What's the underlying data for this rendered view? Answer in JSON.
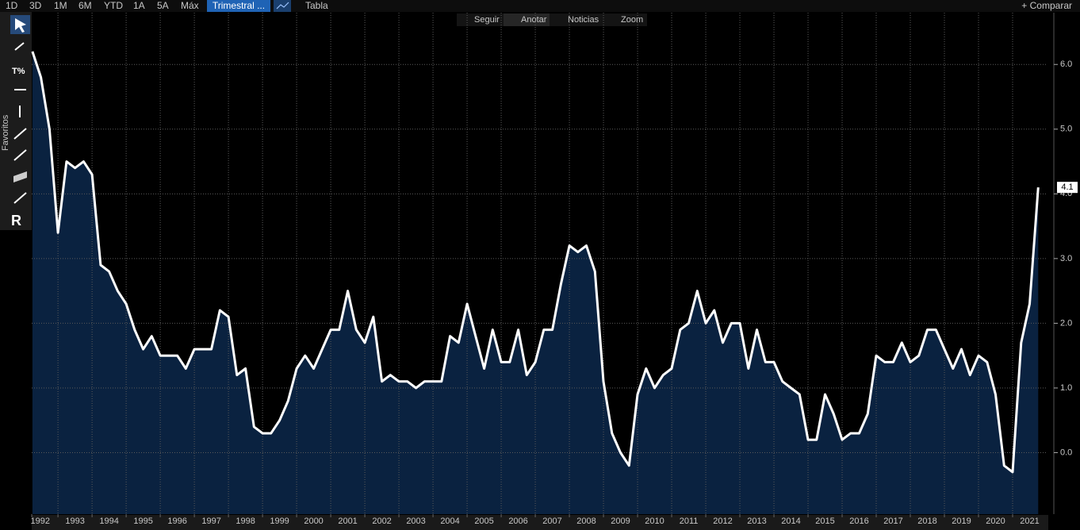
{
  "toolbar": {
    "periods": [
      "1D",
      "3D",
      "1M",
      "6M",
      "YTD",
      "1A",
      "5A",
      "Máx"
    ],
    "frequency": "Trimestral ...",
    "table": "Tabla",
    "compare": "+ Comparar"
  },
  "chart_tools": [
    "Seguir",
    "Anotar",
    "Noticias",
    "Zoom"
  ],
  "side_panel": "Favoritos",
  "chart_data": {
    "type": "area",
    "x": [
      1992.25,
      1992.5,
      1992.75,
      1993,
      1993.25,
      1993.5,
      1993.75,
      1994,
      1994.25,
      1994.5,
      1994.75,
      1995,
      1995.25,
      1995.5,
      1995.75,
      1996,
      1996.25,
      1996.5,
      1996.75,
      1997,
      1997.25,
      1997.5,
      1997.75,
      1998,
      1998.25,
      1998.5,
      1998.75,
      1999,
      1999.25,
      1999.5,
      1999.75,
      2000,
      2000.25,
      2000.5,
      2000.75,
      2001,
      2001.25,
      2001.5,
      2001.75,
      2002,
      2002.25,
      2002.5,
      2002.75,
      2003,
      2003.25,
      2003.5,
      2003.75,
      2004,
      2004.25,
      2004.5,
      2004.75,
      2005,
      2005.25,
      2005.5,
      2005.75,
      2006,
      2006.25,
      2006.5,
      2006.75,
      2007,
      2007.25,
      2007.5,
      2007.75,
      2008,
      2008.25,
      2008.5,
      2008.75,
      2009,
      2009.25,
      2009.5,
      2009.75,
      2010,
      2010.25,
      2010.5,
      2010.75,
      2011,
      2011.25,
      2011.5,
      2011.75,
      2012,
      2012.25,
      2012.5,
      2012.75,
      2013,
      2013.25,
      2013.5,
      2013.75,
      2014,
      2014.25,
      2014.5,
      2014.75,
      2015,
      2015.25,
      2015.5,
      2015.75,
      2016,
      2016.25,
      2016.5,
      2016.75,
      2017,
      2017.25,
      2017.5,
      2017.75,
      2018,
      2018.25,
      2018.5,
      2018.75,
      2019,
      2019.25,
      2019.5,
      2019.75,
      2020,
      2020.25,
      2020.5,
      2020.75,
      2021,
      2021.25,
      2021.5,
      2021.75
    ],
    "series": [
      {
        "color": "#ffffff",
        "fill": "#0a2240",
        "values": [
          6.2,
          5.8,
          5.0,
          3.4,
          4.5,
          4.4,
          4.5,
          4.3,
          2.9,
          2.8,
          2.5,
          2.3,
          1.9,
          1.6,
          1.8,
          1.5,
          1.5,
          1.5,
          1.3,
          1.6,
          1.6,
          1.6,
          2.2,
          2.1,
          1.2,
          1.3,
          0.4,
          0.3,
          0.3,
          0.5,
          0.8,
          1.3,
          1.5,
          1.3,
          1.6,
          1.9,
          1.9,
          2.5,
          1.9,
          1.7,
          2.1,
          1.1,
          1.2,
          1.1,
          1.1,
          1.0,
          1.1,
          1.1,
          1.1,
          1.8,
          1.7,
          2.3,
          1.8,
          1.3,
          1.9,
          1.4,
          1.4,
          1.9,
          1.2,
          1.4,
          1.9,
          1.9,
          2.6,
          3.2,
          3.1,
          3.2,
          2.8,
          1.1,
          0.3,
          0.0,
          -0.2,
          0.9,
          1.3,
          1.0,
          1.2,
          1.3,
          1.9,
          2.0,
          2.5,
          2.0,
          2.2,
          1.7,
          2.0,
          2.0,
          1.3,
          1.9,
          1.4,
          1.4,
          1.1,
          1.0,
          0.9,
          0.2,
          0.2,
          0.9,
          0.6,
          0.2,
          0.3,
          0.3,
          0.6,
          1.5,
          1.4,
          1.4,
          1.7,
          1.4,
          1.5,
          1.9,
          1.9,
          1.6,
          1.3,
          1.6,
          1.2,
          1.5,
          1.4,
          0.9,
          -0.2,
          -0.3,
          1.7,
          2.3,
          4.1
        ]
      }
    ],
    "xlim": [
      1992.23,
      2022.0
    ],
    "xticks": [
      {
        "value": 1992,
        "label": "1992"
      },
      {
        "value": 1993,
        "label": "1993"
      },
      {
        "value": 1994,
        "label": "1994"
      },
      {
        "value": 1995,
        "label": "1995"
      },
      {
        "value": 1996,
        "label": "1996"
      },
      {
        "value": 1997,
        "label": "1997"
      },
      {
        "value": 1998,
        "label": "1998"
      },
      {
        "value": 1999,
        "label": "1999"
      },
      {
        "value": 2000,
        "label": "2000"
      },
      {
        "value": 2001,
        "label": "2001"
      },
      {
        "value": 2002,
        "label": "2002"
      },
      {
        "value": 2003,
        "label": "2003"
      },
      {
        "value": 2004,
        "label": "2004"
      },
      {
        "value": 2005,
        "label": "2005"
      },
      {
        "value": 2006,
        "label": "2006"
      },
      {
        "value": 2007,
        "label": "2007"
      },
      {
        "value": 2008,
        "label": "2008"
      },
      {
        "value": 2009,
        "label": "2009"
      },
      {
        "value": 2010,
        "label": "2010"
      },
      {
        "value": 2011,
        "label": "2011"
      },
      {
        "value": 2012,
        "label": "2012"
      },
      {
        "value": 2013,
        "label": "2013"
      },
      {
        "value": 2014,
        "label": "2014"
      },
      {
        "value": 2015,
        "label": "2015"
      },
      {
        "value": 2016,
        "label": "2016"
      },
      {
        "value": 2017,
        "label": "2017"
      },
      {
        "value": 2018,
        "label": "2018"
      },
      {
        "value": 2019,
        "label": "2019"
      },
      {
        "value": 2020,
        "label": "2020"
      },
      {
        "value": 2021,
        "label": "2021"
      }
    ],
    "ylim": [
      -0.95,
      6.8
    ],
    "yticks": [
      {
        "value": 0,
        "label": "0.0"
      },
      {
        "value": 1,
        "label": "1.0"
      },
      {
        "value": 2,
        "label": "2.0"
      },
      {
        "value": 3,
        "label": "3.0"
      },
      {
        "value": 4,
        "label": "4.0"
      },
      {
        "value": 5,
        "label": "5.0"
      },
      {
        "value": 6,
        "label": "6.0"
      }
    ],
    "grid": true
  }
}
